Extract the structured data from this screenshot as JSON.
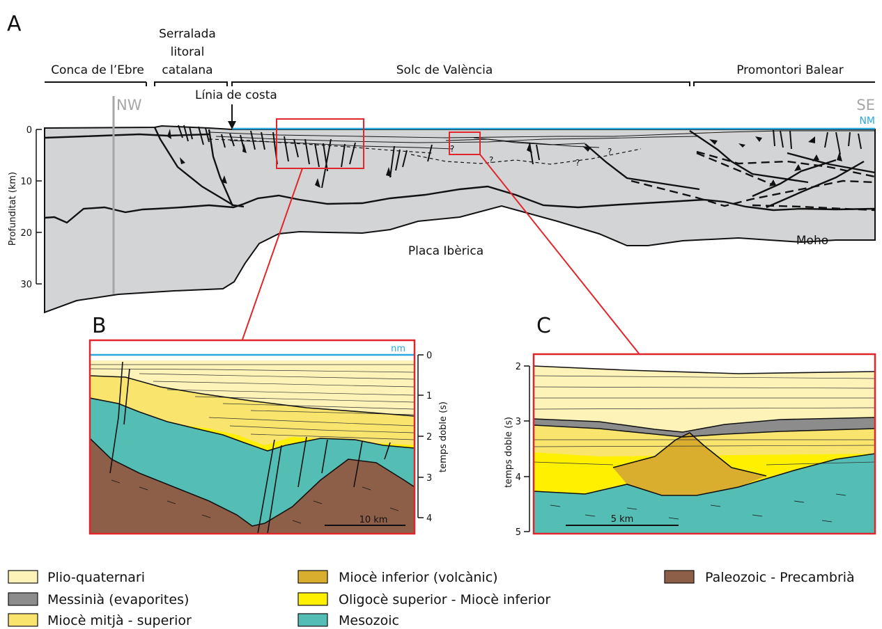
{
  "panel_letters": {
    "a": "A",
    "b": "B",
    "c": "C"
  },
  "regions": {
    "conca": "Conca de l’Ebre",
    "serralada": [
      "Serralada",
      "litoral",
      "catalana"
    ],
    "solc": "Solc de València",
    "promontori": "Promontori Balear"
  },
  "labels": {
    "nw": "NW",
    "se": "SE",
    "nm": "NM",
    "costa": "Línia de costa",
    "placa": "Placa Ibèrica",
    "moho": "Moho",
    "question_mark": "?"
  },
  "panel_a_axis": {
    "ylabel": "Profunditat (km)",
    "ticks": [
      "0",
      "10",
      "20",
      "30"
    ]
  },
  "panel_b": {
    "nm": "nm",
    "ylabel": "temps doble (s)",
    "ticks": [
      "0",
      "1",
      "2",
      "3",
      "4"
    ],
    "scale": "10 km"
  },
  "panel_c": {
    "ylabel": "temps doble (s)",
    "ticks": [
      "2",
      "3",
      "4",
      "5"
    ],
    "scale": "5 km"
  },
  "legend": [
    {
      "label": "Plio-quaternari",
      "color": "#fdf3b8"
    },
    {
      "label": "Messinià (evaporites)",
      "color": "#8c8c8c"
    },
    {
      "label": "Miocè mitjà - superior",
      "color": "#f9e46e"
    },
    {
      "label": "Miocè inferior (volcànic)",
      "color": "#d9ad2e"
    },
    {
      "label": "Oligocè superior - Miocè inferior",
      "color": "#fff000"
    },
    {
      "label": "Mesozoic",
      "color": "#54bdb4"
    },
    {
      "label": "Paleozoic - Precambrià",
      "color": "#8e5f48"
    }
  ],
  "colors": {
    "crust": "#d3d4d6",
    "sea": "#2aa7df",
    "frame": "#e0262b",
    "grey_label": "#a6a6a6"
  }
}
